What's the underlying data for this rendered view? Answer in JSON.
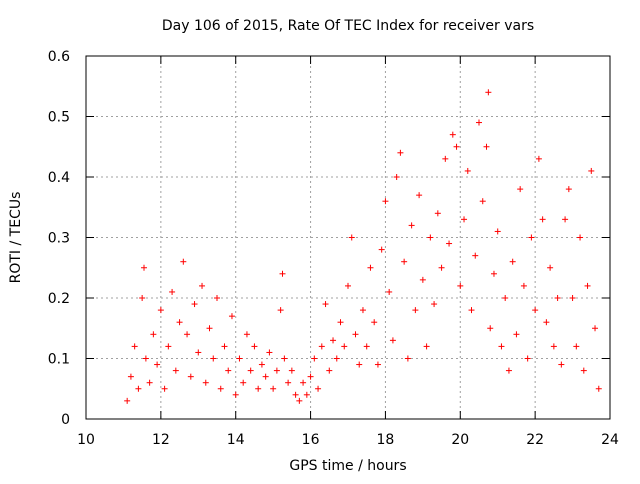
{
  "chart_data": {
    "type": "scatter",
    "title": "Day 106 of 2015, Rate Of TEC Index for receiver vars",
    "xlabel": "GPS time / hours",
    "ylabel": "ROTI / TECUs",
    "xlim": [
      10,
      24
    ],
    "ylim": [
      0,
      0.6
    ],
    "x_ticks": [
      10,
      12,
      14,
      16,
      18,
      20,
      22,
      24
    ],
    "y_ticks": [
      0,
      0.1,
      0.2,
      0.3,
      0.4,
      0.5,
      0.6
    ],
    "x_tick_labels": [
      "10",
      "12",
      "14",
      "16",
      "18",
      "20",
      "22",
      "24"
    ],
    "y_tick_labels": [
      "0",
      "0.1",
      "0.2",
      "0.3",
      "0.4",
      "0.5",
      "0.6"
    ],
    "grid": true,
    "marker": "+",
    "color": "#ff0000",
    "series": [
      {
        "name": "vars",
        "points": [
          [
            11.1,
            0.03
          ],
          [
            11.2,
            0.07
          ],
          [
            11.3,
            0.12
          ],
          [
            11.4,
            0.05
          ],
          [
            11.5,
            0.2
          ],
          [
            11.55,
            0.25
          ],
          [
            11.6,
            0.1
          ],
          [
            11.7,
            0.06
          ],
          [
            11.8,
            0.14
          ],
          [
            11.9,
            0.09
          ],
          [
            12.0,
            0.18
          ],
          [
            12.1,
            0.05
          ],
          [
            12.2,
            0.12
          ],
          [
            12.3,
            0.21
          ],
          [
            12.4,
            0.08
          ],
          [
            12.5,
            0.16
          ],
          [
            12.6,
            0.26
          ],
          [
            12.7,
            0.14
          ],
          [
            12.8,
            0.07
          ],
          [
            12.9,
            0.19
          ],
          [
            13.0,
            0.11
          ],
          [
            13.1,
            0.22
          ],
          [
            13.2,
            0.06
          ],
          [
            13.3,
            0.15
          ],
          [
            13.4,
            0.1
          ],
          [
            13.5,
            0.2
          ],
          [
            13.6,
            0.05
          ],
          [
            13.7,
            0.12
          ],
          [
            13.8,
            0.08
          ],
          [
            13.9,
            0.17
          ],
          [
            14.0,
            0.04
          ],
          [
            14.1,
            0.1
          ],
          [
            14.2,
            0.06
          ],
          [
            14.3,
            0.14
          ],
          [
            14.4,
            0.08
          ],
          [
            14.5,
            0.12
          ],
          [
            14.6,
            0.05
          ],
          [
            14.7,
            0.09
          ],
          [
            14.8,
            0.07
          ],
          [
            14.9,
            0.11
          ],
          [
            15.0,
            0.05
          ],
          [
            15.1,
            0.08
          ],
          [
            15.2,
            0.18
          ],
          [
            15.25,
            0.24
          ],
          [
            15.3,
            0.1
          ],
          [
            15.4,
            0.06
          ],
          [
            15.5,
            0.08
          ],
          [
            15.6,
            0.04
          ],
          [
            15.7,
            0.03
          ],
          [
            15.8,
            0.06
          ],
          [
            15.9,
            0.04
          ],
          [
            16.0,
            0.07
          ],
          [
            16.1,
            0.1
          ],
          [
            16.2,
            0.05
          ],
          [
            16.3,
            0.12
          ],
          [
            16.4,
            0.19
          ],
          [
            16.5,
            0.08
          ],
          [
            16.6,
            0.13
          ],
          [
            16.7,
            0.1
          ],
          [
            16.8,
            0.16
          ],
          [
            16.9,
            0.12
          ],
          [
            17.0,
            0.22
          ],
          [
            17.1,
            0.3
          ],
          [
            17.2,
            0.14
          ],
          [
            17.3,
            0.09
          ],
          [
            17.4,
            0.18
          ],
          [
            17.5,
            0.12
          ],
          [
            17.6,
            0.25
          ],
          [
            17.7,
            0.16
          ],
          [
            17.8,
            0.09
          ],
          [
            17.9,
            0.28
          ],
          [
            18.0,
            0.36
          ],
          [
            18.1,
            0.21
          ],
          [
            18.2,
            0.13
          ],
          [
            18.3,
            0.4
          ],
          [
            18.4,
            0.44
          ],
          [
            18.5,
            0.26
          ],
          [
            18.6,
            0.1
          ],
          [
            18.7,
            0.32
          ],
          [
            18.8,
            0.18
          ],
          [
            18.9,
            0.37
          ],
          [
            19.0,
            0.23
          ],
          [
            19.1,
            0.12
          ],
          [
            19.2,
            0.3
          ],
          [
            19.3,
            0.19
          ],
          [
            19.4,
            0.34
          ],
          [
            19.5,
            0.25
          ],
          [
            19.6,
            0.43
          ],
          [
            19.7,
            0.29
          ],
          [
            19.8,
            0.47
          ],
          [
            19.9,
            0.45
          ],
          [
            20.0,
            0.22
          ],
          [
            20.1,
            0.33
          ],
          [
            20.2,
            0.41
          ],
          [
            20.3,
            0.18
          ],
          [
            20.4,
            0.27
          ],
          [
            20.5,
            0.49
          ],
          [
            20.6,
            0.36
          ],
          [
            20.7,
            0.45
          ],
          [
            20.75,
            0.54
          ],
          [
            20.8,
            0.15
          ],
          [
            20.9,
            0.24
          ],
          [
            21.0,
            0.31
          ],
          [
            21.1,
            0.12
          ],
          [
            21.2,
            0.2
          ],
          [
            21.3,
            0.08
          ],
          [
            21.4,
            0.26
          ],
          [
            21.5,
            0.14
          ],
          [
            21.6,
            0.38
          ],
          [
            21.7,
            0.22
          ],
          [
            21.8,
            0.1
          ],
          [
            21.9,
            0.3
          ],
          [
            22.0,
            0.18
          ],
          [
            22.1,
            0.43
          ],
          [
            22.2,
            0.33
          ],
          [
            22.3,
            0.16
          ],
          [
            22.4,
            0.25
          ],
          [
            22.5,
            0.12
          ],
          [
            22.6,
            0.2
          ],
          [
            22.7,
            0.09
          ],
          [
            22.8,
            0.33
          ],
          [
            22.9,
            0.38
          ],
          [
            23.0,
            0.2
          ],
          [
            23.1,
            0.12
          ],
          [
            23.2,
            0.3
          ],
          [
            23.3,
            0.08
          ],
          [
            23.4,
            0.22
          ],
          [
            23.5,
            0.41
          ],
          [
            23.6,
            0.15
          ],
          [
            23.7,
            0.05
          ]
        ]
      }
    ]
  }
}
